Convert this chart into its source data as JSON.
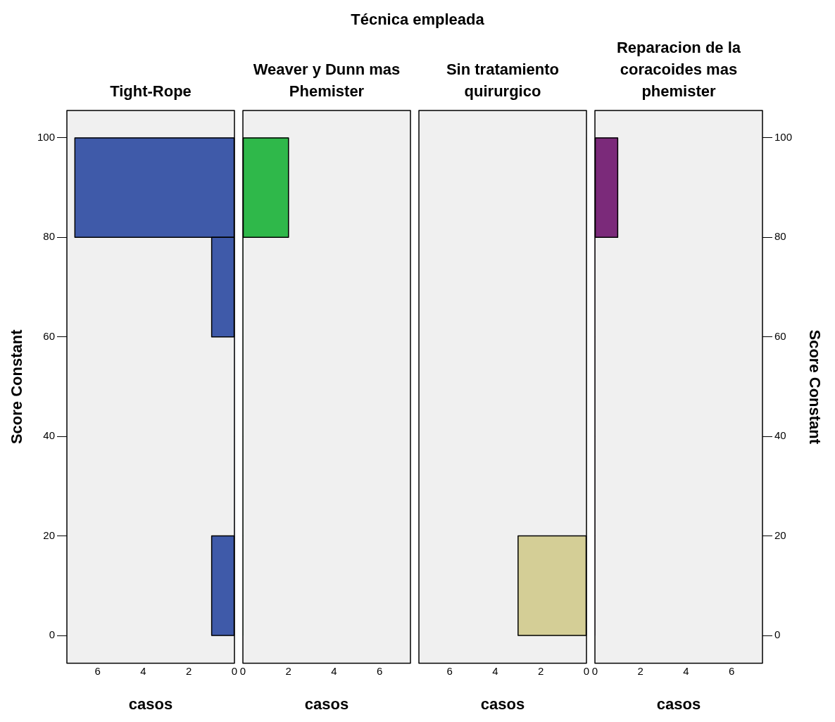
{
  "chart_data": [
    {
      "type": "histogram",
      "orientation": "horizontal",
      "title": "Tight-Rope",
      "annotations": [
        "Técnica empleada"
      ],
      "xlabel": "casos",
      "ylabel": "Score Constant",
      "bins": [
        0,
        20,
        40,
        60,
        80,
        100
      ],
      "values": [
        1,
        0,
        0,
        1,
        7
      ],
      "color": "#3f5aa9",
      "xlim": [
        7.35,
        0
      ],
      "xticks": [
        6,
        4,
        2,
        0
      ],
      "ylim": [
        -5.6,
        105.5
      ],
      "yticks": [
        0,
        20,
        40,
        60,
        80,
        100
      ],
      "legend": false
    },
    {
      "type": "histogram",
      "orientation": "horizontal",
      "title": "Weaver y Dunn mas Phemister",
      "xlabel": "casos",
      "bins": [
        0,
        20,
        40,
        60,
        80,
        100
      ],
      "values": [
        0,
        0,
        0,
        0,
        2
      ],
      "color": "#2fb84a",
      "xlim": [
        0,
        7.35
      ],
      "xticks": [
        0,
        2,
        4,
        6
      ],
      "ylim": [
        -5.6,
        105.5
      ],
      "yticks": [
        0,
        20,
        40,
        60,
        80,
        100
      ],
      "tick_labels": "x",
      "legend": false
    },
    {
      "type": "histogram",
      "orientation": "horizontal",
      "title": "Sin tratamiento quirurgico",
      "xlabel": "casos",
      "bins": [
        0,
        20,
        40,
        60,
        80,
        100
      ],
      "values": [
        3,
        0,
        0,
        0,
        0
      ],
      "color": "#d4ce96",
      "xlim": [
        7.35,
        0
      ],
      "xticks": [
        6,
        4,
        2,
        0
      ],
      "ylim": [
        -5.6,
        105.5
      ],
      "yticks": [
        0,
        20,
        40,
        60,
        80,
        100
      ],
      "tick_labels": "x",
      "legend": false
    },
    {
      "type": "histogram",
      "orientation": "horizontal",
      "title": "Reparacion de la coracoides mas phemister",
      "xlabel": "casos",
      "ylabel": "Score Constant",
      "bins": [
        0,
        20,
        40,
        60,
        80,
        100
      ],
      "values": [
        0,
        0,
        0,
        0,
        1
      ],
      "color": "#7b2a7a",
      "xlim": [
        0,
        7.35
      ],
      "xticks": [
        0,
        2,
        4,
        6
      ],
      "ylim": [
        -5.6,
        105.5
      ],
      "yticks": [
        0,
        20,
        40,
        60,
        80,
        100
      ],
      "legend": false
    }
  ]
}
